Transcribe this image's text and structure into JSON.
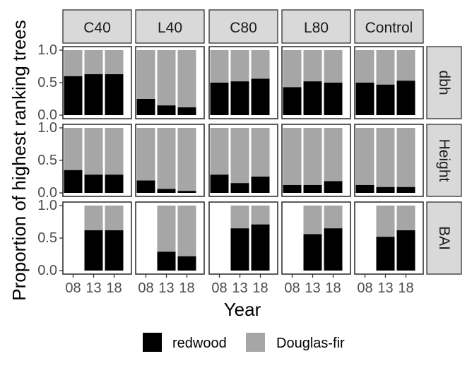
{
  "chart_data": {
    "type": "bar",
    "stacked": true,
    "xlabel": "Year",
    "ylabel": "Proportion of highest ranking trees",
    "ylim": [
      0,
      1
    ],
    "y_ticks": [
      "0.0",
      "0.5",
      "1.0"
    ],
    "categories": [
      "08",
      "13",
      "18"
    ],
    "facet_columns": [
      "C40",
      "L40",
      "C80",
      "L80",
      "Control"
    ],
    "facet_rows": [
      "dbh",
      "Height",
      "BAI"
    ],
    "legend": {
      "position": "bottom",
      "entries": [
        {
          "name": "redwood",
          "color": "#000000"
        },
        {
          "name": "Douglas-fir",
          "color": "#a6a6a6"
        }
      ]
    },
    "panels": [
      {
        "row": "dbh",
        "col": "C40",
        "redwood": [
          0.6,
          0.63,
          0.63
        ],
        "douglas_fir": [
          0.4,
          0.37,
          0.37
        ]
      },
      {
        "row": "dbh",
        "col": "L40",
        "redwood": [
          0.25,
          0.15,
          0.12
        ],
        "douglas_fir": [
          0.75,
          0.85,
          0.88
        ]
      },
      {
        "row": "dbh",
        "col": "C80",
        "redwood": [
          0.5,
          0.52,
          0.56
        ],
        "douglas_fir": [
          0.5,
          0.48,
          0.44
        ]
      },
      {
        "row": "dbh",
        "col": "L80",
        "redwood": [
          0.43,
          0.52,
          0.5
        ],
        "douglas_fir": [
          0.57,
          0.48,
          0.5
        ]
      },
      {
        "row": "dbh",
        "col": "Control",
        "redwood": [
          0.5,
          0.47,
          0.53
        ],
        "douglas_fir": [
          0.5,
          0.53,
          0.47
        ]
      },
      {
        "row": "Height",
        "col": "C40",
        "redwood": [
          0.35,
          0.28,
          0.28
        ],
        "douglas_fir": [
          0.65,
          0.72,
          0.72
        ]
      },
      {
        "row": "Height",
        "col": "L40",
        "redwood": [
          0.19,
          0.06,
          0.03
        ],
        "douglas_fir": [
          0.81,
          0.94,
          0.97
        ]
      },
      {
        "row": "Height",
        "col": "C80",
        "redwood": [
          0.28,
          0.15,
          0.25
        ],
        "douglas_fir": [
          0.72,
          0.85,
          0.75
        ]
      },
      {
        "row": "Height",
        "col": "L80",
        "redwood": [
          0.12,
          0.12,
          0.18
        ],
        "douglas_fir": [
          0.88,
          0.88,
          0.82
        ]
      },
      {
        "row": "Height",
        "col": "Control",
        "redwood": [
          0.12,
          0.09,
          0.09
        ],
        "douglas_fir": [
          0.88,
          0.91,
          0.91
        ]
      },
      {
        "row": "BAI",
        "col": "C40",
        "redwood": [
          null,
          0.62,
          0.62
        ],
        "douglas_fir": [
          null,
          0.38,
          0.38
        ]
      },
      {
        "row": "BAI",
        "col": "L40",
        "redwood": [
          null,
          0.29,
          0.22
        ],
        "douglas_fir": [
          null,
          0.71,
          0.78
        ]
      },
      {
        "row": "BAI",
        "col": "C80",
        "redwood": [
          null,
          0.65,
          0.71
        ],
        "douglas_fir": [
          null,
          0.35,
          0.29
        ]
      },
      {
        "row": "BAI",
        "col": "L80",
        "redwood": [
          null,
          0.56,
          0.65
        ],
        "douglas_fir": [
          null,
          0.44,
          0.35
        ]
      },
      {
        "row": "BAI",
        "col": "Control",
        "redwood": [
          null,
          0.52,
          0.62
        ],
        "douglas_fir": [
          null,
          0.48,
          0.38
        ]
      }
    ]
  }
}
